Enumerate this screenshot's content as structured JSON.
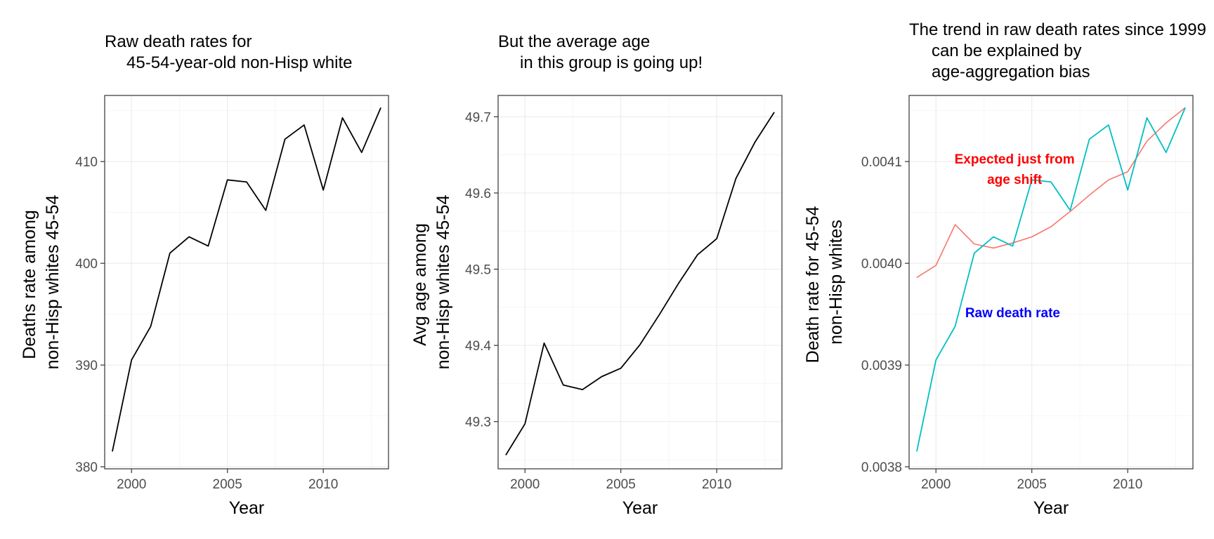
{
  "chart_data": [
    {
      "type": "line",
      "title": [
        "Raw death rates for",
        "45-54-year-old non-Hisp white"
      ],
      "xlabel": "Year",
      "ylabel": [
        "Deaths rate among",
        "non-Hisp whites 45-54"
      ],
      "xlim": [
        1998.6,
        2013.4
      ],
      "ylim": [
        379.8,
        416.5
      ],
      "x_ticks": [
        2000,
        2005,
        2010
      ],
      "y_ticks": [
        380,
        390,
        400,
        410
      ],
      "grid": true,
      "x": [
        1999,
        2000,
        2001,
        2002,
        2003,
        2004,
        2005,
        2006,
        2007,
        2008,
        2009,
        2010,
        2011,
        2012,
        2013
      ],
      "series": [
        {
          "color": "#000000",
          "values": [
            381.5,
            390.5,
            393.8,
            401.0,
            402.6,
            401.7,
            408.2,
            408.0,
            405.2,
            412.2,
            413.6,
            407.2,
            414.3,
            410.9,
            415.3
          ]
        }
      ],
      "annotations": []
    },
    {
      "type": "line",
      "title": [
        "But the average age",
        "in this group is going up!"
      ],
      "xlabel": "Year",
      "ylabel": [
        "Avg age among",
        "non-Hisp whites 45-54"
      ],
      "xlim": [
        1998.6,
        2013.4
      ],
      "ylim": [
        49.238,
        49.728
      ],
      "x_ticks": [
        2000,
        2005,
        2010
      ],
      "y_ticks": [
        49.3,
        49.4,
        49.5,
        49.6,
        49.7
      ],
      "grid": true,
      "x": [
        1999,
        2000,
        2001,
        2002,
        2003,
        2004,
        2005,
        2006,
        2007,
        2008,
        2009,
        2010,
        2011,
        2012,
        2013
      ],
      "series": [
        {
          "color": "#000000",
          "values": [
            49.256,
            49.297,
            49.403,
            49.348,
            49.342,
            49.359,
            49.37,
            49.401,
            49.44,
            49.481,
            49.519,
            49.54,
            49.619,
            49.667,
            49.706
          ]
        }
      ],
      "annotations": []
    },
    {
      "type": "line",
      "title": [
        "The trend in raw death rates since 1999",
        "can be explained by",
        "age-aggregation bias"
      ],
      "xlabel": "Year",
      "ylabel": [
        "Death rate for 45-54",
        "non-Hisp whites"
      ],
      "xlim": [
        1998.6,
        2013.4
      ],
      "ylim": [
        0.003798,
        0.004165
      ],
      "x_ticks": [
        2000,
        2005,
        2010
      ],
      "y_ticks": [
        0.0038,
        0.0039,
        0.004,
        0.0041
      ],
      "y_tick_labels": [
        "0.0038",
        "0.0039",
        "0.0040",
        "0.0041"
      ],
      "grid": true,
      "x": [
        1999,
        2000,
        2001,
        2002,
        2003,
        2004,
        2005,
        2006,
        2007,
        2008,
        2009,
        2010,
        2011,
        2012,
        2013
      ],
      "series": [
        {
          "color": "#f8766d",
          "values": [
            0.003986,
            0.003998,
            0.004038,
            0.004019,
            0.004015,
            0.00402,
            0.004026,
            0.004036,
            0.004051,
            0.004067,
            0.004082,
            0.00409,
            0.00412,
            0.004138,
            0.004153
          ]
        },
        {
          "color": "#00bfc4",
          "values": [
            0.003815,
            0.003905,
            0.003938,
            0.00401,
            0.004026,
            0.004017,
            0.004082,
            0.00408,
            0.004052,
            0.004122,
            0.004136,
            0.004072,
            0.004143,
            0.004109,
            0.004153
          ]
        }
      ],
      "annotations": [
        {
          "lines": [
            "Expected just from",
            "age shift"
          ],
          "color": "#ff0000",
          "x": 2004.1,
          "y": 0.004098
        },
        {
          "lines": [
            "Raw death rate"
          ],
          "color": "#0000ff",
          "x": 2004.0,
          "y": 0.003947
        }
      ]
    }
  ]
}
